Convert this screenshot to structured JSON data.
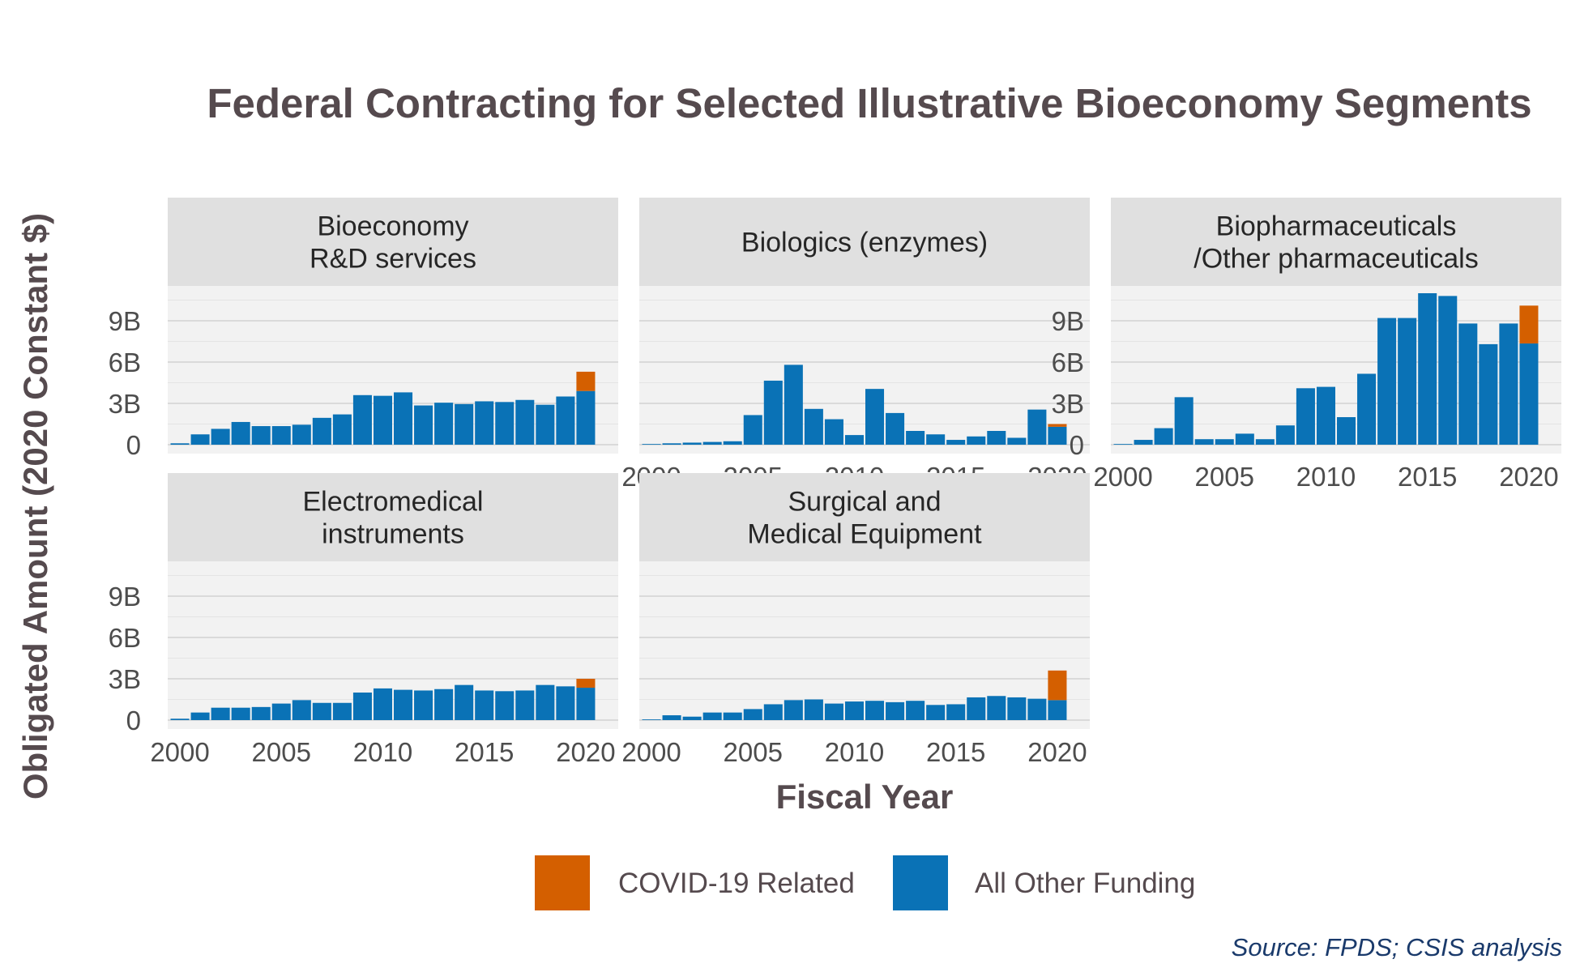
{
  "chart_data": {
    "type": "bar",
    "stacked": true,
    "title": "Federal Contracting for Selected Illustrative Bioeconomy Segments",
    "xlabel": "Fiscal Year",
    "ylabel": "Obligated Amount (2020 Constant $)",
    "ylim": [
      0,
      11.5
    ],
    "y_ticks": [
      {
        "value": 0,
        "label": "0"
      },
      {
        "value": 3,
        "label": "3B"
      },
      {
        "value": 6,
        "label": "6B"
      },
      {
        "value": 9,
        "label": "9B"
      }
    ],
    "x_ticks": [
      {
        "value": 2000,
        "label": "2000"
      },
      {
        "value": 2005,
        "label": "2005"
      },
      {
        "value": 2010,
        "label": "2010"
      },
      {
        "value": 2015,
        "label": "2015"
      },
      {
        "value": 2020,
        "label": "2020"
      }
    ],
    "years": [
      2000,
      2001,
      2002,
      2003,
      2004,
      2005,
      2006,
      2007,
      2008,
      2009,
      2010,
      2011,
      2012,
      2013,
      2014,
      2015,
      2016,
      2017,
      2018,
      2019,
      2020
    ],
    "legend": {
      "position": "bottom",
      "items": [
        {
          "key": "covid",
          "label": "COVID-19 Related",
          "color": "#d45f00"
        },
        {
          "key": "other",
          "label": "All Other Funding",
          "color": "#0a72b6"
        }
      ]
    },
    "source": "Source: FPDS; CSIS analysis",
    "panels": [
      {
        "title_lines": [
          "Bioeconomy",
          "R&D services"
        ],
        "other": [
          0.1,
          0.75,
          1.15,
          1.65,
          1.35,
          1.35,
          1.45,
          1.95,
          2.2,
          3.6,
          3.55,
          3.8,
          2.85,
          3.05,
          2.95,
          3.15,
          3.1,
          3.25,
          2.9,
          3.5,
          3.9
        ],
        "covid": [
          0,
          0,
          0,
          0,
          0,
          0,
          0,
          0,
          0,
          0,
          0,
          0,
          0,
          0,
          0,
          0,
          0,
          0,
          0,
          0,
          1.4
        ]
      },
      {
        "title_lines": [
          "Biologics (enzymes)"
        ],
        "other": [
          0.05,
          0.1,
          0.15,
          0.2,
          0.25,
          2.15,
          4.65,
          5.8,
          2.6,
          1.85,
          0.7,
          4.05,
          2.3,
          1.0,
          0.75,
          0.35,
          0.6,
          1.0,
          0.5,
          2.55,
          1.3
        ],
        "covid": [
          0,
          0,
          0,
          0,
          0,
          0,
          0,
          0,
          0,
          0,
          0,
          0,
          0,
          0,
          0,
          0,
          0,
          0,
          0,
          0,
          0.2
        ]
      },
      {
        "title_lines": [
          "Biopharmaceuticals",
          "/Other pharmaceuticals"
        ],
        "other": [
          0.05,
          0.35,
          1.2,
          3.45,
          0.4,
          0.4,
          0.8,
          0.4,
          1.4,
          4.1,
          4.2,
          2.0,
          5.15,
          9.2,
          9.2,
          11.0,
          10.8,
          8.8,
          7.3,
          8.8,
          7.35
        ],
        "covid": [
          0,
          0,
          0,
          0,
          0,
          0,
          0,
          0,
          0,
          0,
          0,
          0,
          0,
          0,
          0,
          0,
          0,
          0,
          0,
          0,
          2.75
        ]
      },
      {
        "title_lines": [
          "Electromedical",
          "instruments"
        ],
        "other": [
          0.1,
          0.55,
          0.9,
          0.9,
          0.95,
          1.2,
          1.45,
          1.25,
          1.25,
          2.0,
          2.3,
          2.2,
          2.15,
          2.25,
          2.55,
          2.15,
          2.1,
          2.15,
          2.55,
          2.45,
          2.35
        ],
        "covid": [
          0,
          0,
          0,
          0,
          0,
          0,
          0,
          0,
          0,
          0,
          0,
          0,
          0,
          0,
          0,
          0,
          0,
          0,
          0,
          0,
          0.65
        ]
      },
      {
        "title_lines": [
          "Surgical and",
          "Medical Equipment"
        ],
        "other": [
          0.05,
          0.35,
          0.25,
          0.55,
          0.55,
          0.8,
          1.15,
          1.45,
          1.5,
          1.2,
          1.35,
          1.4,
          1.3,
          1.4,
          1.1,
          1.15,
          1.65,
          1.75,
          1.65,
          1.55,
          1.45
        ],
        "covid": [
          0,
          0,
          0,
          0,
          0,
          0,
          0,
          0,
          0,
          0,
          0,
          0,
          0,
          0,
          0,
          0,
          0,
          0,
          0,
          0,
          2.15
        ]
      }
    ]
  }
}
